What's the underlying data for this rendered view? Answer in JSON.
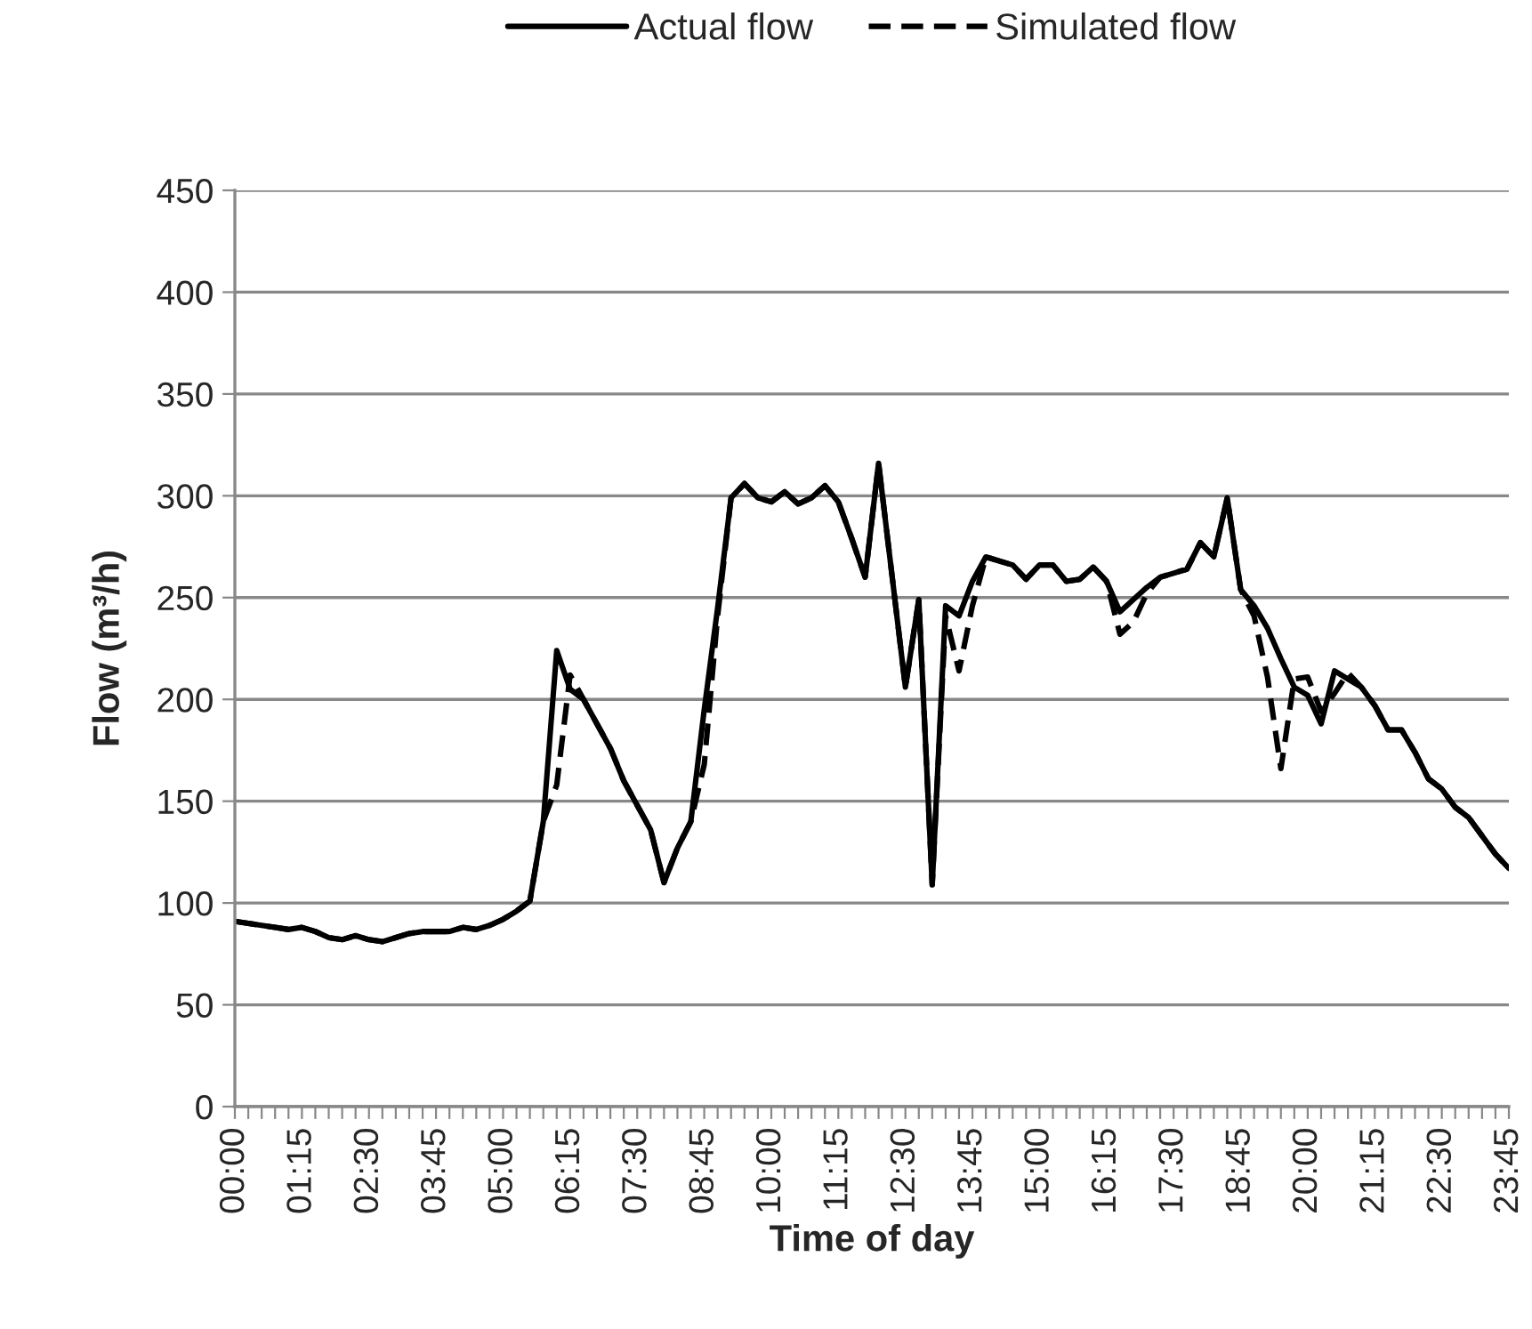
{
  "chart_data": {
    "type": "line",
    "xlabel": "Time of day",
    "ylabel": "Flow (m³/h)",
    "categories": [
      "00:00",
      null,
      null,
      null,
      null,
      "01:15",
      null,
      null,
      null,
      null,
      "02:30",
      null,
      null,
      null,
      null,
      "03:45",
      null,
      null,
      null,
      null,
      "05:00",
      null,
      null,
      null,
      null,
      "06:15",
      null,
      null,
      null,
      null,
      "07:30",
      null,
      null,
      null,
      null,
      "08:45",
      null,
      null,
      null,
      null,
      "10:00",
      null,
      null,
      null,
      null,
      "11:15",
      null,
      null,
      null,
      null,
      "12:30",
      null,
      null,
      null,
      null,
      "13:45",
      null,
      null,
      null,
      null,
      "15:00",
      null,
      null,
      null,
      null,
      "16:15",
      null,
      null,
      null,
      null,
      "17:30",
      null,
      null,
      null,
      null,
      "18:45",
      null,
      null,
      null,
      null,
      "20:00",
      null,
      null,
      null,
      null,
      "21:15",
      null,
      null,
      null,
      null,
      "22:30",
      null,
      null,
      null,
      null,
      "23:45"
    ],
    "series": [
      {
        "name": "Actual flow",
        "color": "#000000",
        "line_style": "solid",
        "values": [
          91,
          90,
          89,
          88,
          87,
          88,
          86,
          83,
          82,
          84,
          82,
          81,
          83,
          85,
          86,
          86,
          86,
          88,
          87,
          89,
          92,
          96,
          101,
          140,
          224,
          205,
          200,
          188,
          176,
          160,
          148,
          136,
          110,
          127,
          140,
          195,
          245,
          299,
          306,
          299,
          297,
          302,
          296,
          299,
          305,
          297,
          279,
          260,
          316,
          261,
          206,
          249,
          109,
          246,
          241,
          258,
          270,
          268,
          266,
          259,
          266,
          266,
          258,
          259,
          265,
          258,
          243,
          249,
          255,
          260,
          262,
          264,
          277,
          270,
          299,
          254,
          246,
          235,
          220,
          206,
          202,
          188,
          214,
          210,
          206,
          197,
          185,
          185,
          174,
          161,
          156,
          147,
          142,
          133,
          124,
          117
        ]
      },
      {
        "name": "Simulated flow",
        "color": "#000000",
        "line_style": "dashed",
        "values": [
          91,
          90,
          89,
          88,
          87,
          88,
          86,
          83,
          82,
          84,
          82,
          81,
          83,
          85,
          86,
          86,
          86,
          88,
          87,
          89,
          92,
          96,
          101,
          140,
          158,
          212,
          200,
          188,
          176,
          160,
          148,
          136,
          110,
          127,
          140,
          168,
          241,
          299,
          306,
          299,
          297,
          302,
          296,
          299,
          305,
          297,
          279,
          260,
          316,
          261,
          206,
          249,
          109,
          241,
          214,
          246,
          270,
          268,
          266,
          259,
          266,
          266,
          258,
          259,
          265,
          258,
          232,
          238,
          252,
          260,
          262,
          264,
          277,
          270,
          299,
          254,
          241,
          211,
          166,
          210,
          211,
          194,
          203,
          213,
          206,
          197,
          185,
          185,
          174,
          161,
          156,
          147,
          142,
          133,
          124,
          117
        ]
      }
    ],
    "ylim": [
      0,
      450
    ],
    "yticks": [
      0,
      50,
      100,
      150,
      200,
      250,
      300,
      350,
      400,
      450
    ],
    "grid": "y",
    "legend": "top"
  }
}
